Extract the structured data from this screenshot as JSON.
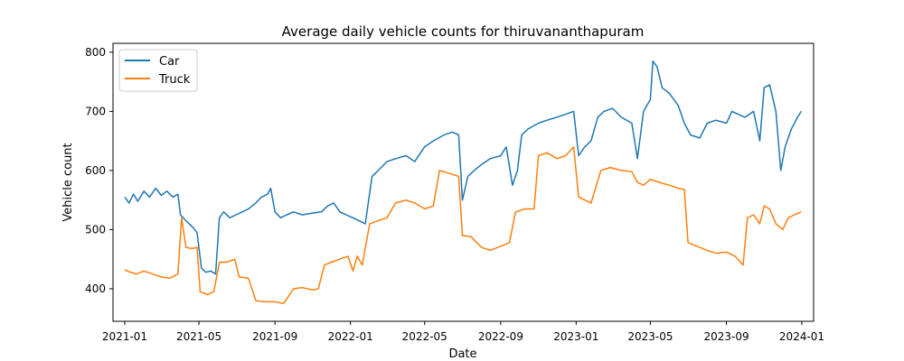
{
  "chart_data": {
    "type": "line",
    "title": "Average daily vehicle counts for thiruvananthapuram",
    "xlabel": "Date",
    "ylabel": "Vehicle count",
    "x_ticks": [
      "2021-01",
      "2021-05",
      "2021-09",
      "2022-01",
      "2022-05",
      "2022-09",
      "2023-01",
      "2023-05",
      "2023-09",
      "2024-01"
    ],
    "y_ticks": [
      400,
      500,
      600,
      700,
      800
    ],
    "xlim": [
      "2020-12-13",
      "2024-01-20"
    ],
    "ylim": [
      345,
      815
    ],
    "grid": false,
    "legend_position": "top-left",
    "series": [
      {
        "name": "Car",
        "color": "#1f77b4",
        "points": [
          [
            "2021-01-01",
            555
          ],
          [
            "2021-01-08",
            545
          ],
          [
            "2021-01-15",
            560
          ],
          [
            "2021-01-22",
            548
          ],
          [
            "2021-02-01",
            565
          ],
          [
            "2021-02-10",
            555
          ],
          [
            "2021-02-20",
            570
          ],
          [
            "2021-03-01",
            558
          ],
          [
            "2021-03-10",
            565
          ],
          [
            "2021-03-20",
            555
          ],
          [
            "2021-03-28",
            560
          ],
          [
            "2021-04-01",
            525
          ],
          [
            "2021-04-10",
            515
          ],
          [
            "2021-04-20",
            505
          ],
          [
            "2021-04-28",
            495
          ],
          [
            "2021-05-05",
            435
          ],
          [
            "2021-05-12",
            428
          ],
          [
            "2021-05-20",
            430
          ],
          [
            "2021-05-28",
            425
          ],
          [
            "2021-06-03",
            520
          ],
          [
            "2021-06-10",
            530
          ],
          [
            "2021-06-20",
            520
          ],
          [
            "2021-06-30",
            525
          ],
          [
            "2021-07-10",
            530
          ],
          [
            "2021-07-20",
            535
          ],
          [
            "2021-08-01",
            545
          ],
          [
            "2021-08-10",
            555
          ],
          [
            "2021-08-20",
            560
          ],
          [
            "2021-08-25",
            570
          ],
          [
            "2021-09-01",
            530
          ],
          [
            "2021-09-10",
            520
          ],
          [
            "2021-09-20",
            525
          ],
          [
            "2021-10-01",
            530
          ],
          [
            "2021-10-15",
            525
          ],
          [
            "2021-11-01",
            528
          ],
          [
            "2021-11-15",
            530
          ],
          [
            "2021-11-25",
            540
          ],
          [
            "2021-12-05",
            545
          ],
          [
            "2021-12-15",
            530
          ],
          [
            "2021-12-25",
            525
          ],
          [
            "2022-01-05",
            520
          ],
          [
            "2022-01-15",
            515
          ],
          [
            "2022-01-25",
            510
          ],
          [
            "2022-02-05",
            590
          ],
          [
            "2022-02-15",
            600
          ],
          [
            "2022-03-01",
            615
          ],
          [
            "2022-03-15",
            620
          ],
          [
            "2022-04-01",
            625
          ],
          [
            "2022-04-15",
            615
          ],
          [
            "2022-05-01",
            640
          ],
          [
            "2022-05-15",
            650
          ],
          [
            "2022-06-01",
            660
          ],
          [
            "2022-06-15",
            665
          ],
          [
            "2022-06-25",
            660
          ],
          [
            "2022-07-01",
            550
          ],
          [
            "2022-07-10",
            590
          ],
          [
            "2022-07-20",
            600
          ],
          [
            "2022-08-01",
            610
          ],
          [
            "2022-08-15",
            620
          ],
          [
            "2022-09-01",
            625
          ],
          [
            "2022-09-10",
            640
          ],
          [
            "2022-09-20",
            575
          ],
          [
            "2022-09-28",
            600
          ],
          [
            "2022-10-05",
            660
          ],
          [
            "2022-10-15",
            670
          ],
          [
            "2022-11-01",
            680
          ],
          [
            "2022-11-15",
            685
          ],
          [
            "2022-12-01",
            690
          ],
          [
            "2022-12-15",
            695
          ],
          [
            "2022-12-28",
            700
          ],
          [
            "2023-01-05",
            625
          ],
          [
            "2023-01-15",
            640
          ],
          [
            "2023-01-25",
            650
          ],
          [
            "2023-02-05",
            690
          ],
          [
            "2023-02-15",
            700
          ],
          [
            "2023-03-01",
            705
          ],
          [
            "2023-03-15",
            690
          ],
          [
            "2023-04-01",
            680
          ],
          [
            "2023-04-10",
            620
          ],
          [
            "2023-04-20",
            700
          ],
          [
            "2023-05-01",
            720
          ],
          [
            "2023-05-05",
            785
          ],
          [
            "2023-05-12",
            775
          ],
          [
            "2023-05-20",
            740
          ],
          [
            "2023-06-01",
            730
          ],
          [
            "2023-06-15",
            710
          ],
          [
            "2023-06-25",
            680
          ],
          [
            "2023-07-05",
            660
          ],
          [
            "2023-07-20",
            655
          ],
          [
            "2023-08-01",
            680
          ],
          [
            "2023-08-15",
            685
          ],
          [
            "2023-09-01",
            680
          ],
          [
            "2023-09-10",
            700
          ],
          [
            "2023-09-20",
            695
          ],
          [
            "2023-10-01",
            690
          ],
          [
            "2023-10-15",
            700
          ],
          [
            "2023-10-25",
            650
          ],
          [
            "2023-11-01",
            740
          ],
          [
            "2023-11-10",
            745
          ],
          [
            "2023-11-20",
            700
          ],
          [
            "2023-11-28",
            600
          ],
          [
            "2023-12-05",
            640
          ],
          [
            "2023-12-15",
            670
          ],
          [
            "2023-12-25",
            690
          ],
          [
            "2023-12-31",
            700
          ]
        ]
      },
      {
        "name": "Truck",
        "color": "#ff7f0e",
        "points": [
          [
            "2021-01-01",
            432
          ],
          [
            "2021-01-10",
            428
          ],
          [
            "2021-01-20",
            425
          ],
          [
            "2021-02-01",
            430
          ],
          [
            "2021-02-15",
            425
          ],
          [
            "2021-03-01",
            420
          ],
          [
            "2021-03-15",
            418
          ],
          [
            "2021-03-28",
            425
          ],
          [
            "2021-04-03",
            520
          ],
          [
            "2021-04-10",
            470
          ],
          [
            "2021-04-20",
            468
          ],
          [
            "2021-04-28",
            470
          ],
          [
            "2021-05-03",
            395
          ],
          [
            "2021-05-15",
            390
          ],
          [
            "2021-05-25",
            395
          ],
          [
            "2021-06-03",
            445
          ],
          [
            "2021-06-15",
            445
          ],
          [
            "2021-06-28",
            450
          ],
          [
            "2021-07-05",
            420
          ],
          [
            "2021-07-20",
            418
          ],
          [
            "2021-08-01",
            380
          ],
          [
            "2021-08-15",
            378
          ],
          [
            "2021-09-01",
            378
          ],
          [
            "2021-09-15",
            375
          ],
          [
            "2021-10-01",
            400
          ],
          [
            "2021-10-15",
            402
          ],
          [
            "2021-11-01",
            398
          ],
          [
            "2021-11-10",
            400
          ],
          [
            "2021-11-20",
            440
          ],
          [
            "2021-12-01",
            445
          ],
          [
            "2021-12-15",
            450
          ],
          [
            "2021-12-28",
            455
          ],
          [
            "2022-01-05",
            430
          ],
          [
            "2022-01-12",
            455
          ],
          [
            "2022-01-20",
            440
          ],
          [
            "2022-02-01",
            510
          ],
          [
            "2022-02-15",
            515
          ],
          [
            "2022-03-01",
            520
          ],
          [
            "2022-03-15",
            545
          ],
          [
            "2022-04-01",
            550
          ],
          [
            "2022-04-15",
            545
          ],
          [
            "2022-05-01",
            535
          ],
          [
            "2022-05-15",
            540
          ],
          [
            "2022-05-25",
            600
          ],
          [
            "2022-06-10",
            595
          ],
          [
            "2022-06-25",
            590
          ],
          [
            "2022-07-01",
            490
          ],
          [
            "2022-07-15",
            488
          ],
          [
            "2022-08-01",
            470
          ],
          [
            "2022-08-15",
            465
          ],
          [
            "2022-09-01",
            472
          ],
          [
            "2022-09-15",
            478
          ],
          [
            "2022-09-25",
            530
          ],
          [
            "2022-10-10",
            535
          ],
          [
            "2022-10-25",
            535
          ],
          [
            "2022-11-01",
            625
          ],
          [
            "2022-11-15",
            630
          ],
          [
            "2022-12-01",
            620
          ],
          [
            "2022-12-15",
            625
          ],
          [
            "2022-12-28",
            640
          ],
          [
            "2023-01-05",
            555
          ],
          [
            "2023-01-15",
            550
          ],
          [
            "2023-01-25",
            545
          ],
          [
            "2023-02-10",
            600
          ],
          [
            "2023-02-25",
            605
          ],
          [
            "2023-03-15",
            600
          ],
          [
            "2023-04-01",
            598
          ],
          [
            "2023-04-10",
            580
          ],
          [
            "2023-04-20",
            575
          ],
          [
            "2023-05-01",
            585
          ],
          [
            "2023-05-15",
            580
          ],
          [
            "2023-06-01",
            575
          ],
          [
            "2023-06-15",
            570
          ],
          [
            "2023-06-25",
            568
          ],
          [
            "2023-07-01",
            478
          ],
          [
            "2023-07-15",
            472
          ],
          [
            "2023-08-01",
            465
          ],
          [
            "2023-08-15",
            460
          ],
          [
            "2023-09-01",
            462
          ],
          [
            "2023-09-15",
            455
          ],
          [
            "2023-09-28",
            440
          ],
          [
            "2023-10-05",
            520
          ],
          [
            "2023-10-15",
            525
          ],
          [
            "2023-10-25",
            510
          ],
          [
            "2023-11-01",
            540
          ],
          [
            "2023-11-10",
            535
          ],
          [
            "2023-11-20",
            510
          ],
          [
            "2023-12-01",
            500
          ],
          [
            "2023-12-10",
            520
          ],
          [
            "2023-12-20",
            525
          ],
          [
            "2023-12-31",
            530
          ]
        ]
      }
    ]
  }
}
